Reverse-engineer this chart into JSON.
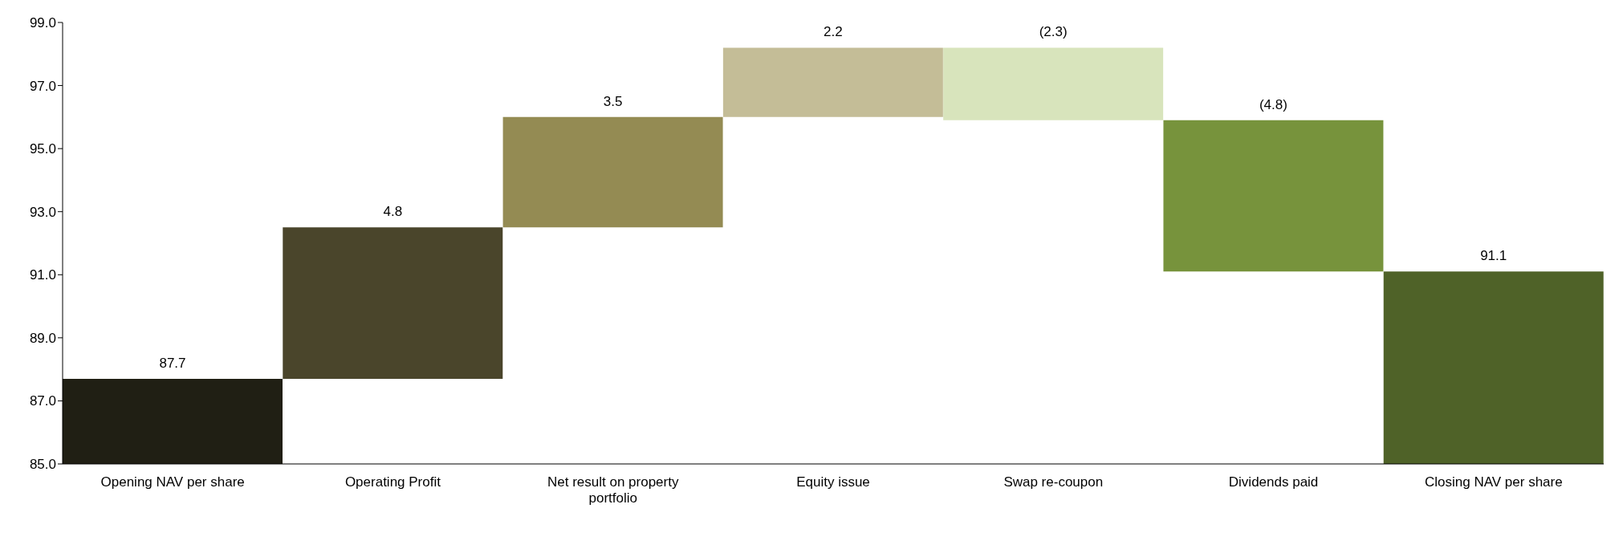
{
  "chart_data": {
    "type": "bar",
    "categories": [
      "Opening NAV per share",
      "Operating Profit",
      "Net result on property portfolio",
      "Equity issue",
      "Swap re-coupon",
      "Dividends paid",
      "Closing NAV per share"
    ],
    "base": [
      0,
      87.7,
      92.5,
      96.0,
      98.2,
      95.9,
      0
    ],
    "values": [
      87.7,
      4.8,
      3.5,
      2.2,
      -2.3,
      -4.8,
      91.1
    ],
    "value_labels": [
      "87.7",
      "4.8",
      "3.5",
      "2.2",
      "(2.3)",
      "(4.8)",
      "91.1"
    ],
    "colors": [
      "#201f14",
      "#4a452b",
      "#948b53",
      "#c4bd97",
      "#d8e4bc",
      "#77933c",
      "#4f6228"
    ],
    "ylim": [
      85,
      99
    ],
    "yticks": [
      {
        "value": 85,
        "label": "85.0"
      },
      {
        "value": 87,
        "label": "87.0"
      },
      {
        "value": 89,
        "label": "89.0"
      },
      {
        "value": 91,
        "label": "91.0"
      },
      {
        "value": 93,
        "label": "93.0"
      },
      {
        "value": 95,
        "label": "95.0"
      },
      {
        "value": 97,
        "label": "97.0"
      },
      {
        "value": 99,
        "label": "99.0"
      }
    ],
    "grid": false,
    "legend": false
  }
}
